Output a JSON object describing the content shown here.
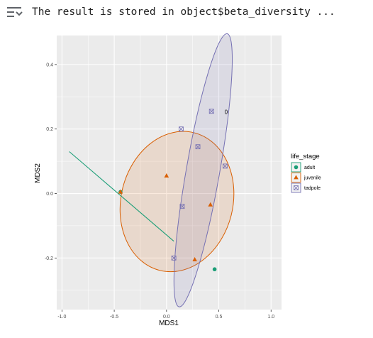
{
  "output": {
    "icon": "collapse-output-icon",
    "text": "The result is stored in object$beta_diversity ..."
  },
  "chart_data": {
    "type": "scatter",
    "title": "",
    "xlabel": "MDS1",
    "ylabel": "MDS2",
    "xlim": [
      -1.05,
      1.1
    ],
    "ylim": [
      -0.36,
      0.49
    ],
    "xticks": [
      -1.0,
      -0.5,
      0.0,
      0.5,
      1.0
    ],
    "xtick_labels": [
      "-1.0",
      "-0.5",
      "0.0",
      "0.5",
      "1.0"
    ],
    "yticks": [
      -0.2,
      0.0,
      0.2,
      0.4
    ],
    "ytick_labels": [
      "-0.2",
      "0.0",
      "0.2",
      "0.4"
    ],
    "grid": true,
    "legend_title": "life_stage",
    "legend_position": "right",
    "series": [
      {
        "name": "adult",
        "color": "#1b9e77",
        "shape": "circle",
        "points": [
          [
            -0.44,
            0.005
          ],
          [
            0.46,
            -0.235
          ]
        ]
      },
      {
        "name": "juvenile",
        "color": "#d95f02",
        "shape": "triangle",
        "points": [
          [
            -0.44,
            0.005
          ],
          [
            0.0,
            0.055
          ],
          [
            0.42,
            -0.035
          ],
          [
            0.27,
            -0.205
          ]
        ]
      },
      {
        "name": "tadpole",
        "color": "#7570b3",
        "shape": "boxcross",
        "points": [
          [
            0.43,
            0.255
          ],
          [
            0.14,
            0.2
          ],
          [
            0.3,
            0.145
          ],
          [
            0.56,
            0.085
          ],
          [
            0.15,
            -0.04
          ],
          [
            0.07,
            -0.2
          ]
        ]
      }
    ],
    "ellipses": [
      {
        "series": "juvenile",
        "fill": "#d95f02",
        "stroke": "#d95f02",
        "center": [
          0.1,
          -0.025
        ],
        "rx_data": 1.07,
        "ry_data": 0.22,
        "angle_deg": 14
      },
      {
        "series": "tadpole",
        "fill": "#7570b3",
        "stroke": "#7570b3",
        "center": [
          0.35,
          0.072
        ],
        "rx_data": 0.32,
        "ry_data": 0.43,
        "angle_deg": 10
      }
    ],
    "segments": [
      {
        "series": "adult",
        "color": "#1b9e77",
        "from": [
          -0.93,
          0.13
        ],
        "to": [
          0.07,
          -0.148
        ]
      }
    ],
    "annotations": [
      {
        "text": "0",
        "x": 0.57,
        "y": 0.253
      }
    ]
  }
}
